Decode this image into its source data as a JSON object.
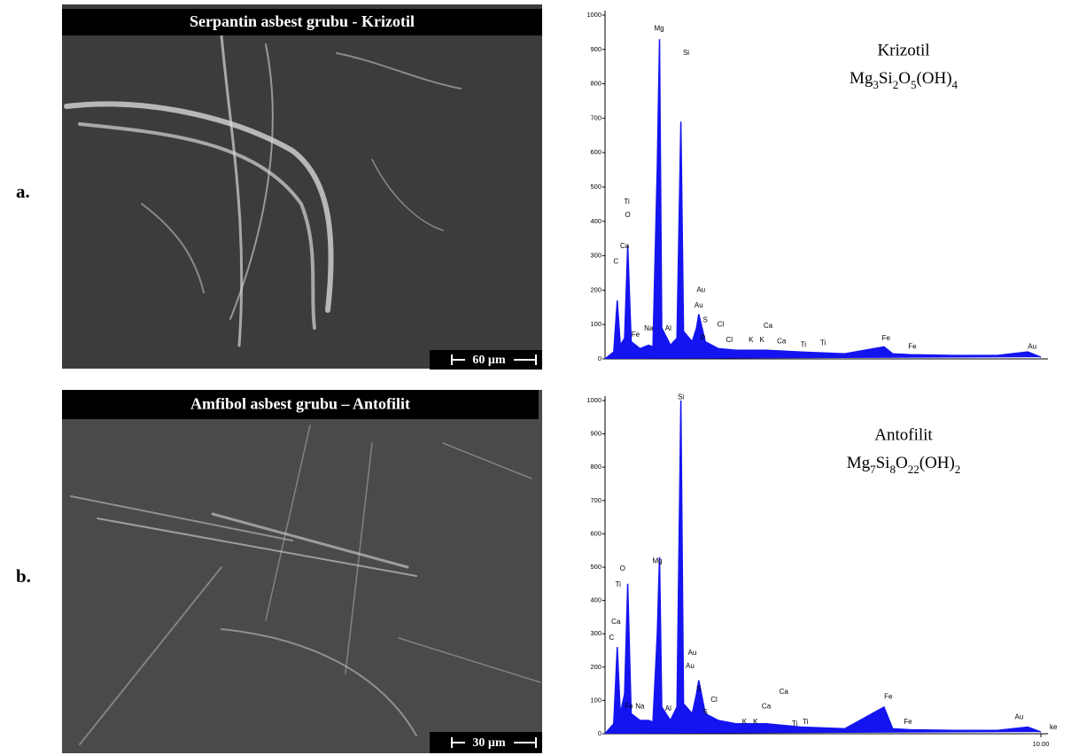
{
  "panels": [
    {
      "label": "a.",
      "image_title": "Serpantin asbest grubu - Krizotil",
      "scale_bar": "60 µm"
    },
    {
      "label": "b.",
      "image_title": "Amfibol asbest grubu – Antofilit",
      "scale_bar": "30 µm"
    }
  ],
  "chart_data": [
    {
      "type": "line",
      "annotation": "Krizotil",
      "formula": [
        "Mg",
        "3",
        "Si",
        "2",
        "O",
        "5",
        "(OH)",
        "4"
      ],
      "x": [
        0,
        0.2,
        0.28,
        0.35,
        0.45,
        0.52,
        0.6,
        0.8,
        1.0,
        1.1,
        1.2,
        1.25,
        1.3,
        1.5,
        1.65,
        1.74,
        1.8,
        2.0,
        2.1,
        2.15,
        2.3,
        2.6,
        3.0,
        3.7,
        4.5,
        5.5,
        6.4,
        6.6,
        7.0,
        8.0,
        9.0,
        9.7,
        9.9,
        10
      ],
      "series": [
        {
          "color": "#1414f0",
          "values": [
            0,
            20,
            170,
            40,
            60,
            330,
            50,
            30,
            40,
            35,
            560,
            930,
            90,
            40,
            60,
            690,
            80,
            50,
            90,
            130,
            50,
            30,
            25,
            25,
            20,
            15,
            35,
            15,
            12,
            10,
            10,
            20,
            10,
            5
          ]
        }
      ],
      "xlim": [
        0,
        10
      ],
      "ylim": [
        0,
        1000
      ],
      "yticks": [
        0,
        100,
        200,
        300,
        400,
        500,
        600,
        700,
        800,
        900,
        1000
      ],
      "xticks": [],
      "peak_labels": [
        {
          "label": "Mg",
          "x": 1.24,
          "y": 960
        },
        {
          "label": "Si",
          "x": 1.86,
          "y": 890
        },
        {
          "label": "Ti",
          "x": 0.5,
          "y": 456
        },
        {
          "label": "O",
          "x": 0.52,
          "y": 418
        },
        {
          "label": "Ca",
          "x": 0.45,
          "y": 327
        },
        {
          "label": "C",
          "x": 0.25,
          "y": 283
        },
        {
          "label": "Fe",
          "x": 0.7,
          "y": 70
        },
        {
          "label": "Na",
          "x": 1.0,
          "y": 88
        },
        {
          "label": "Al",
          "x": 1.45,
          "y": 88
        },
        {
          "label": "Au",
          "x": 2.2,
          "y": 200
        },
        {
          "label": "Au",
          "x": 2.15,
          "y": 155
        },
        {
          "label": "S",
          "x": 2.3,
          "y": 113
        },
        {
          "label": "Cl",
          "x": 2.65,
          "y": 100
        },
        {
          "label": "P",
          "x": 2.25,
          "y": 60
        },
        {
          "label": "Cl",
          "x": 2.85,
          "y": 55
        },
        {
          "label": "K",
          "x": 3.35,
          "y": 55
        },
        {
          "label": "K",
          "x": 3.6,
          "y": 55
        },
        {
          "label": "Ca",
          "x": 3.74,
          "y": 95
        },
        {
          "label": "Ca",
          "x": 4.05,
          "y": 50
        },
        {
          "label": "Ti",
          "x": 4.55,
          "y": 40
        },
        {
          "label": "Ti",
          "x": 5.0,
          "y": 45
        },
        {
          "label": "Fe",
          "x": 6.45,
          "y": 60
        },
        {
          "label": "Fe",
          "x": 7.05,
          "y": 35
        },
        {
          "label": "Au",
          "x": 9.8,
          "y": 35
        }
      ]
    },
    {
      "type": "line",
      "annotation": "Antofilit",
      "formula": [
        "Mg",
        "7",
        "Si",
        "8",
        "O",
        "22",
        "(OH)",
        "2"
      ],
      "x": [
        0,
        0.2,
        0.28,
        0.35,
        0.45,
        0.52,
        0.6,
        0.8,
        1.0,
        1.1,
        1.2,
        1.25,
        1.3,
        1.5,
        1.65,
        1.74,
        1.8,
        2.0,
        2.1,
        2.15,
        2.3,
        2.6,
        3.0,
        3.7,
        4.5,
        5.5,
        6.4,
        6.6,
        7.0,
        8.0,
        9.0,
        9.7,
        9.9,
        10
      ],
      "series": [
        {
          "color": "#1414f0",
          "values": [
            0,
            30,
            260,
            60,
            120,
            450,
            60,
            40,
            40,
            35,
            300,
            530,
            80,
            40,
            80,
            1000,
            90,
            60,
            120,
            160,
            60,
            40,
            30,
            30,
            20,
            15,
            80,
            15,
            12,
            10,
            10,
            20,
            10,
            5
          ]
        }
      ],
      "xlim": [
        0,
        10
      ],
      "ylim": [
        0,
        1000
      ],
      "yticks": [
        0,
        100,
        200,
        300,
        400,
        500,
        600,
        700,
        800,
        900,
        1000
      ],
      "xticks": [
        {
          "value": 10,
          "label": "10.00"
        }
      ],
      "x_label": "ke",
      "peak_labels": [
        {
          "label": "Si",
          "x": 1.74,
          "y": 1010
        },
        {
          "label": "Mg",
          "x": 1.2,
          "y": 518
        },
        {
          "label": "O",
          "x": 0.4,
          "y": 495
        },
        {
          "label": "Ti",
          "x": 0.3,
          "y": 447
        },
        {
          "label": "Ca",
          "x": 0.25,
          "y": 335
        },
        {
          "label": "C",
          "x": 0.15,
          "y": 287
        },
        {
          "label": "Fe",
          "x": 0.55,
          "y": 82
        },
        {
          "label": "Na",
          "x": 0.8,
          "y": 82
        },
        {
          "label": "Al",
          "x": 1.45,
          "y": 75
        },
        {
          "label": "Au",
          "x": 2.0,
          "y": 242
        },
        {
          "label": "Au",
          "x": 1.95,
          "y": 202
        },
        {
          "label": "S",
          "x": 2.15,
          "y": 135
        },
        {
          "label": "Cl",
          "x": 2.5,
          "y": 101
        },
        {
          "label": "S",
          "x": 2.3,
          "y": 64
        },
        {
          "label": "Ca",
          "x": 4.1,
          "y": 125
        },
        {
          "label": "Ca",
          "x": 3.7,
          "y": 82
        },
        {
          "label": "K",
          "x": 3.2,
          "y": 35
        },
        {
          "label": "K",
          "x": 3.45,
          "y": 35
        },
        {
          "label": "Ti",
          "x": 4.35,
          "y": 30
        },
        {
          "label": "Ti",
          "x": 4.6,
          "y": 35
        },
        {
          "label": "Fe",
          "x": 6.5,
          "y": 110
        },
        {
          "label": "Fe",
          "x": 6.95,
          "y": 35
        },
        {
          "label": "Au",
          "x": 9.5,
          "y": 50
        }
      ]
    }
  ]
}
